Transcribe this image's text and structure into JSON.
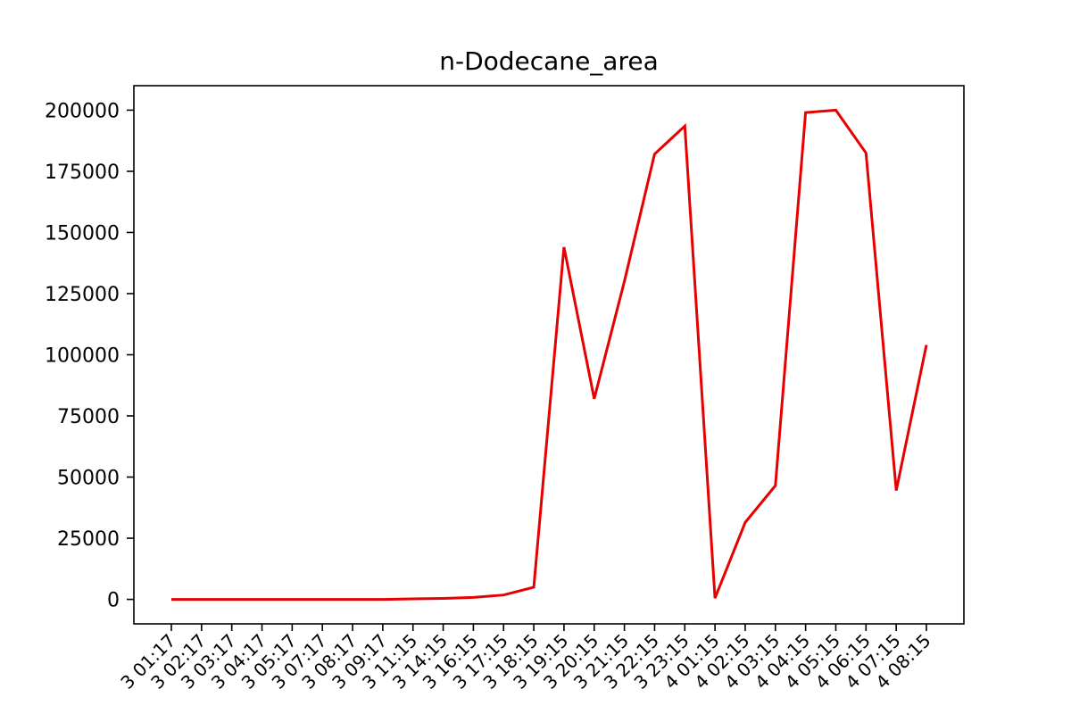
{
  "chart_data": {
    "type": "line",
    "title": "n-Dodecane_area",
    "xlabel": "",
    "ylabel": "",
    "x_tick_labels": [
      "3 01:17",
      "3 02:17",
      "3 03:17",
      "3 04:17",
      "3 05:17",
      "3 07:17",
      "3 08:17",
      "3 09:17",
      "3 11:15",
      "3 14:15",
      "3 16:15",
      "3 17:15",
      "3 18:15",
      "3 19:15",
      "3 20:15",
      "3 21:15",
      "3 22:15",
      "3 23:15",
      "4 01:15",
      "4 02:15",
      "4 03:15",
      "4 04:15",
      "4 05:15",
      "4 06:15",
      "4 07:15",
      "4 08:15"
    ],
    "y_ticks": [
      0,
      25000,
      50000,
      75000,
      100000,
      125000,
      150000,
      175000,
      200000
    ],
    "y_tick_labels": [
      "0",
      "25000",
      "50000",
      "75000",
      "100000",
      "125000",
      "150000",
      "175000",
      "200000"
    ],
    "ylim": [
      -10000,
      210000
    ],
    "grid": false,
    "series": [
      {
        "color": "#e60000",
        "values": [
          0,
          0,
          0,
          0,
          0,
          0,
          0,
          0,
          200,
          400,
          800,
          1800,
          5000,
          144000,
          82000,
          130000,
          182000,
          193500,
          500,
          31500,
          46500,
          199000,
          200000,
          182500,
          44500,
          104000
        ]
      }
    ]
  }
}
